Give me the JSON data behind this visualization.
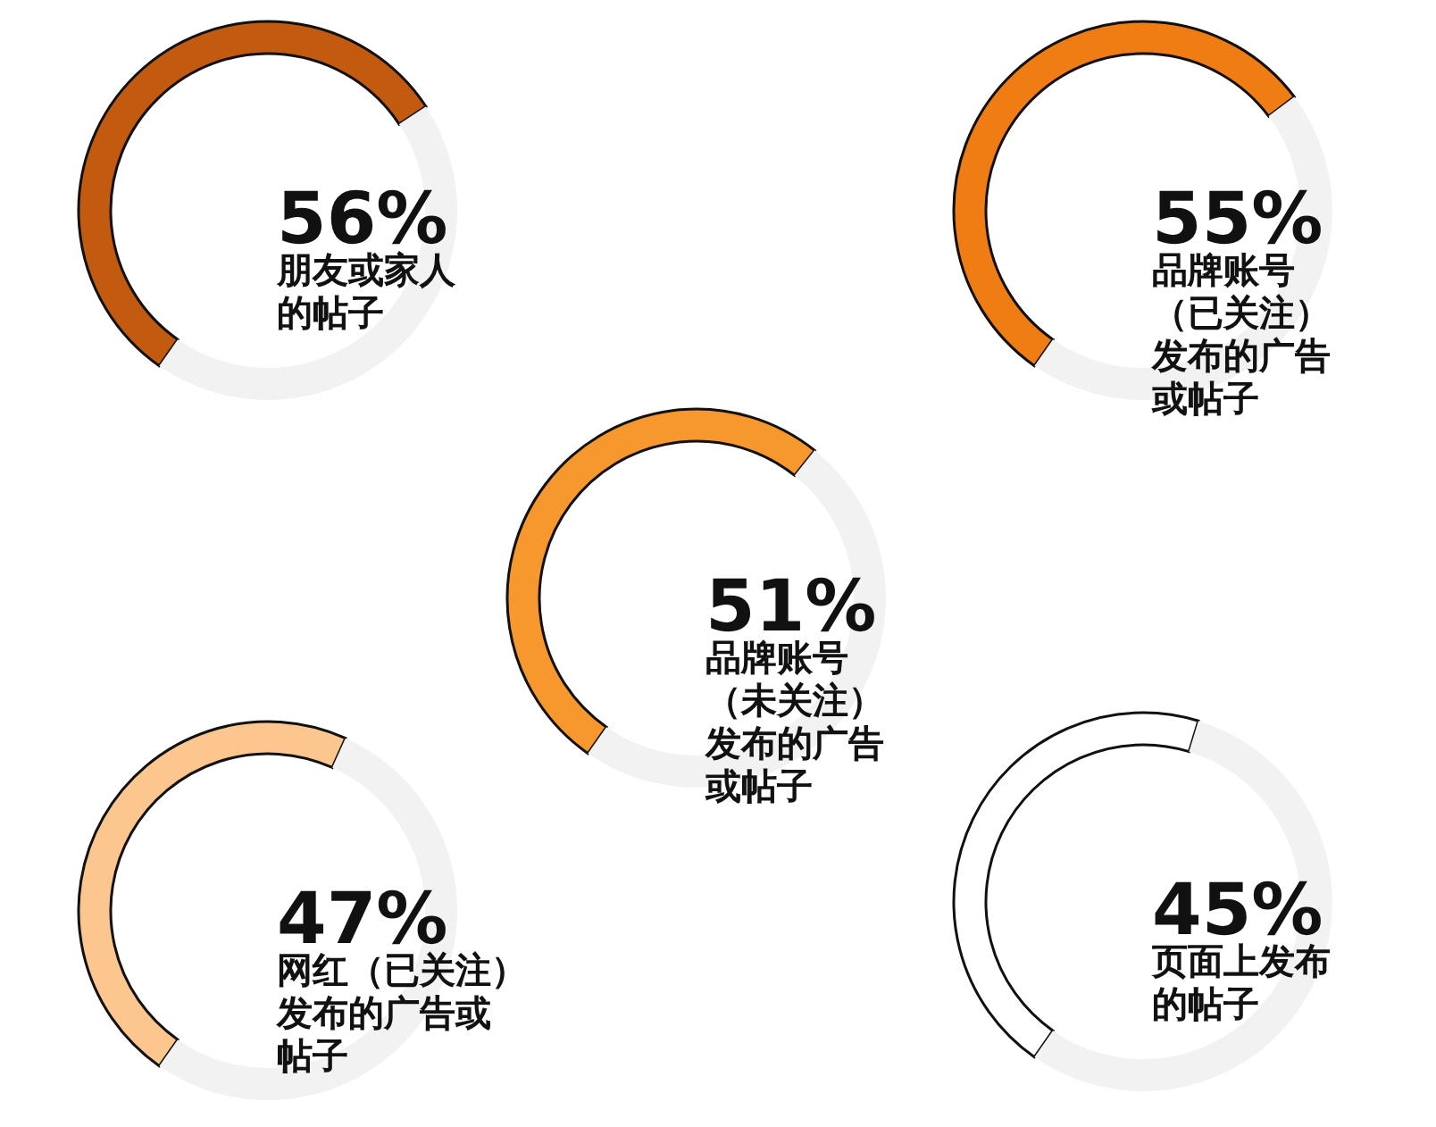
{
  "chart_data": [
    {
      "type": "donut",
      "title": "朋友或家人的帖子",
      "values": [
        56,
        44
      ],
      "colors": [
        "#c25a10",
        "#f2f2f2"
      ],
      "annotations": [
        "56%"
      ]
    },
    {
      "type": "donut",
      "title": "品牌账号（已关注）发布的广告或帖子",
      "values": [
        55,
        45
      ],
      "colors": [
        "#f07c14",
        "#f2f2f2"
      ],
      "annotations": [
        "55%"
      ]
    },
    {
      "type": "donut",
      "title": "品牌账号（未关注）发布的广告或帖子",
      "values": [
        51,
        49
      ],
      "colors": [
        "#f7982f",
        "#f2f2f2"
      ],
      "annotations": [
        "51%"
      ]
    },
    {
      "type": "donut",
      "title": "网红（已关注）发布的广告或帖子",
      "values": [
        47,
        53
      ],
      "colors": [
        "#fcc78e",
        "#f2f2f2"
      ],
      "annotations": [
        "47%"
      ]
    },
    {
      "type": "donut",
      "title": "页面上发布的帖子",
      "values": [
        45,
        55
      ],
      "colors": [
        "#ffffff",
        "#f2f2f2"
      ],
      "annotations": [
        "45%"
      ]
    }
  ]
}
